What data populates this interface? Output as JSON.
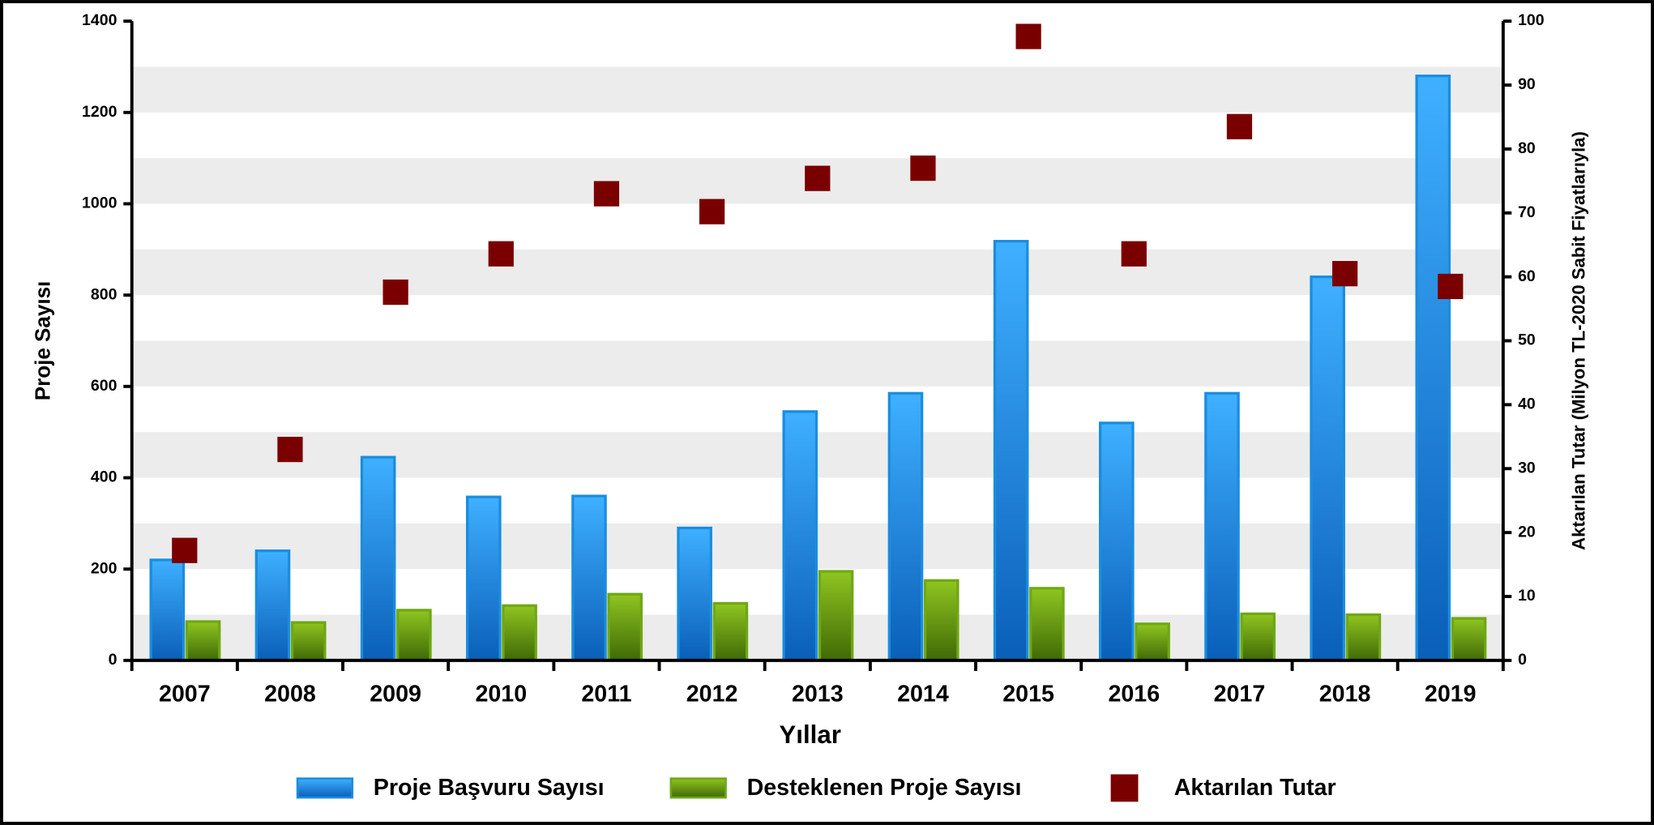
{
  "chart_data": {
    "type": "bar",
    "x_label": "Yıllar",
    "y_label": "Proje Sayısı",
    "y2_label": "Aktarılan Tutar (Milyon TL-2020 Sabit Fiyatlarıyla)",
    "categories": [
      "2007",
      "2008",
      "2009",
      "2010",
      "2011",
      "2012",
      "2013",
      "2014",
      "2015",
      "2016",
      "2017",
      "2018",
      "2019"
    ],
    "series": [
      {
        "name": "Proje Başvuru Sayısı",
        "type": "bar",
        "color": "#1a8de0",
        "values": [
          220,
          240,
          445,
          358,
          360,
          290,
          545,
          585,
          918,
          520,
          585,
          840,
          1280
        ]
      },
      {
        "name": "Desteklenen Proje Sayısı",
        "type": "bar",
        "color": "#6fa812",
        "values": [
          85,
          83,
          110,
          120,
          145,
          125,
          195,
          175,
          158,
          80,
          102,
          100,
          92
        ]
      },
      {
        "name": "Aktarılan Tutar",
        "type": "scatter",
        "axis": "y2",
        "color": "#7a0000",
        "values": [
          17.2,
          33,
          57.6,
          63.6,
          73,
          70.2,
          75.4,
          77,
          97.6,
          63.6,
          83.5,
          60.5,
          58.5
        ]
      }
    ],
    "ylim": [
      0,
      1400
    ],
    "yticks": [
      0,
      200,
      400,
      600,
      800,
      1000,
      1200,
      1400
    ],
    "y2lim": [
      0,
      100
    ],
    "y2ticks": [
      0,
      10,
      20,
      30,
      40,
      50,
      60,
      70,
      80,
      90,
      100
    ],
    "grid": true,
    "legend": "bottom"
  }
}
